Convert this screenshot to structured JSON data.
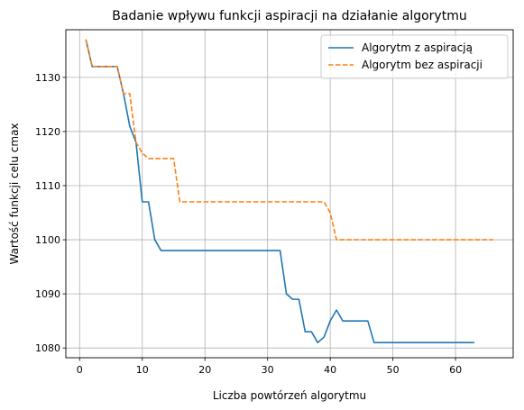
{
  "chart_data": {
    "type": "line",
    "title": "Badanie wpływu funkcji aspiracji na działanie algorytmu",
    "xlabel": "Liczba powtórzeń algorytmu",
    "ylabel": "Wartość funkcji celu cmax",
    "xlim": [
      -2.2,
      69.2
    ],
    "ylim": [
      1078.2,
      1138.8
    ],
    "xticks": [
      0,
      10,
      20,
      30,
      40,
      50,
      60
    ],
    "yticks": [
      1080,
      1090,
      1100,
      1110,
      1120,
      1130
    ],
    "grid": true,
    "legend_position": "top-right",
    "series": [
      {
        "name": "Algorytm z aspiracją",
        "color": "#1f77b4",
        "style": "solid",
        "x": [
          1,
          2,
          3,
          4,
          5,
          6,
          7,
          8,
          9,
          10,
          11,
          12,
          13,
          14,
          15,
          16,
          17,
          18,
          19,
          20,
          21,
          22,
          23,
          24,
          25,
          26,
          27,
          28,
          29,
          30,
          31,
          32,
          33,
          34,
          35,
          36,
          37,
          38,
          39,
          40,
          41,
          42,
          43,
          44,
          45,
          46,
          47,
          48,
          49,
          50,
          51,
          52,
          53,
          54,
          55,
          56,
          57,
          58,
          59,
          60,
          61,
          62,
          63
        ],
        "y": [
          1137,
          1132,
          1132,
          1132,
          1132,
          1132,
          1127,
          1121,
          1118,
          1107,
          1107,
          1100,
          1098,
          1098,
          1098,
          1098,
          1098,
          1098,
          1098,
          1098,
          1098,
          1098,
          1098,
          1098,
          1098,
          1098,
          1098,
          1098,
          1098,
          1098,
          1098,
          1098,
          1090,
          1089,
          1089,
          1083,
          1083,
          1081,
          1082,
          1085,
          1087,
          1085,
          1085,
          1085,
          1085,
          1085,
          1081,
          1081,
          1081,
          1081,
          1081,
          1081,
          1081,
          1081,
          1081,
          1081,
          1081,
          1081,
          1081,
          1081,
          1081,
          1081,
          1081
        ]
      },
      {
        "name": "Algorytm bez aspiracji",
        "color": "#ff7f0e",
        "style": "dashed",
        "x": [
          1,
          2,
          3,
          4,
          5,
          6,
          7,
          8,
          9,
          10,
          11,
          12,
          13,
          14,
          15,
          16,
          17,
          18,
          19,
          20,
          21,
          22,
          23,
          24,
          25,
          26,
          27,
          28,
          29,
          30,
          31,
          32,
          33,
          34,
          35,
          36,
          37,
          38,
          39,
          40,
          41,
          42,
          43,
          44,
          45,
          46,
          47,
          48,
          49,
          50,
          51,
          52,
          53,
          54,
          55,
          56,
          57,
          58,
          59,
          60,
          61,
          62,
          63,
          64,
          65,
          66
        ],
        "y": [
          1137,
          1132,
          1132,
          1132,
          1132,
          1132,
          1127,
          1127,
          1118,
          1116,
          1115,
          1115,
          1115,
          1115,
          1115,
          1107,
          1107,
          1107,
          1107,
          1107,
          1107,
          1107,
          1107,
          1107,
          1107,
          1107,
          1107,
          1107,
          1107,
          1107,
          1107,
          1107,
          1107,
          1107,
          1107,
          1107,
          1107,
          1107,
          1107,
          1105,
          1100,
          1100,
          1100,
          1100,
          1100,
          1100,
          1100,
          1100,
          1100,
          1100,
          1100,
          1100,
          1100,
          1100,
          1100,
          1100,
          1100,
          1100,
          1100,
          1100,
          1100,
          1100,
          1100,
          1100,
          1100,
          1100
        ]
      }
    ]
  }
}
